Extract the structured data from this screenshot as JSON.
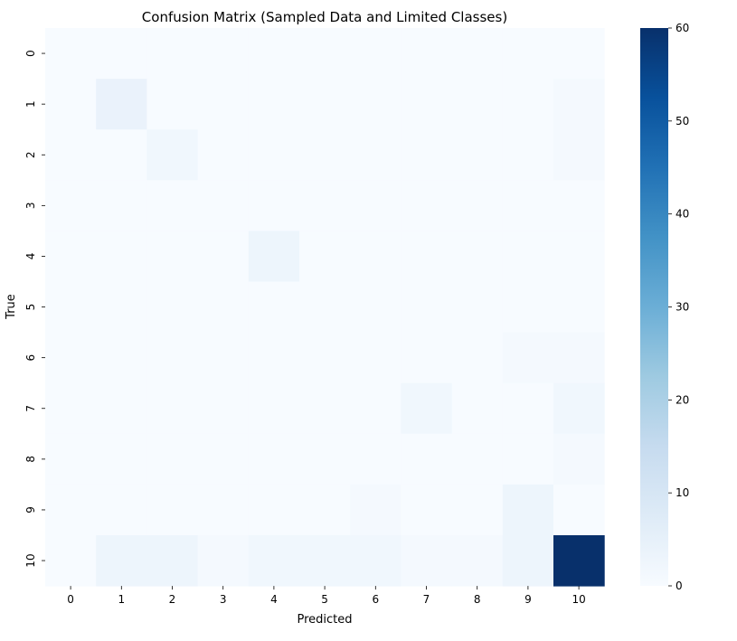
{
  "chart_data": {
    "type": "heatmap",
    "title": "Confusion Matrix (Sampled Data and Limited Classes)",
    "xlabel": "Predicted",
    "ylabel": "True",
    "x_categories": [
      "0",
      "1",
      "2",
      "3",
      "4",
      "5",
      "6",
      "7",
      "8",
      "9",
      "10"
    ],
    "y_categories": [
      "0",
      "1",
      "2",
      "3",
      "4",
      "5",
      "6",
      "7",
      "8",
      "9",
      "10"
    ],
    "values": [
      [
        0,
        0,
        0,
        0,
        0,
        0,
        0,
        0,
        0,
        0,
        0
      ],
      [
        0,
        4,
        0,
        0,
        0,
        0,
        0,
        0,
        0,
        0,
        1
      ],
      [
        0,
        0,
        2,
        0,
        0,
        0,
        0,
        0,
        0,
        0,
        1
      ],
      [
        0,
        0,
        0,
        0,
        0,
        0,
        0,
        0,
        0,
        0,
        0
      ],
      [
        0,
        0,
        0,
        0,
        3,
        0,
        0,
        0,
        0,
        0,
        0
      ],
      [
        0,
        0,
        0,
        0,
        0,
        0,
        0,
        0,
        0,
        0,
        0
      ],
      [
        0,
        0,
        0,
        0,
        0,
        0,
        0,
        0,
        0,
        1,
        1
      ],
      [
        0,
        0,
        0,
        0,
        0,
        0,
        0,
        2,
        0,
        0,
        2
      ],
      [
        0,
        0,
        0,
        0,
        0,
        0,
        0,
        0,
        0,
        0,
        1
      ],
      [
        0,
        0,
        0,
        0,
        0,
        0,
        1,
        0,
        0,
        3,
        0
      ],
      [
        0,
        3,
        3,
        1,
        2,
        2,
        2,
        1,
        1,
        3,
        60
      ]
    ],
    "colorbar": {
      "min": 0,
      "max": 60,
      "ticks": [
        0,
        10,
        20,
        30,
        40,
        50,
        60
      ],
      "colormap": "Blues"
    },
    "grid": false
  }
}
